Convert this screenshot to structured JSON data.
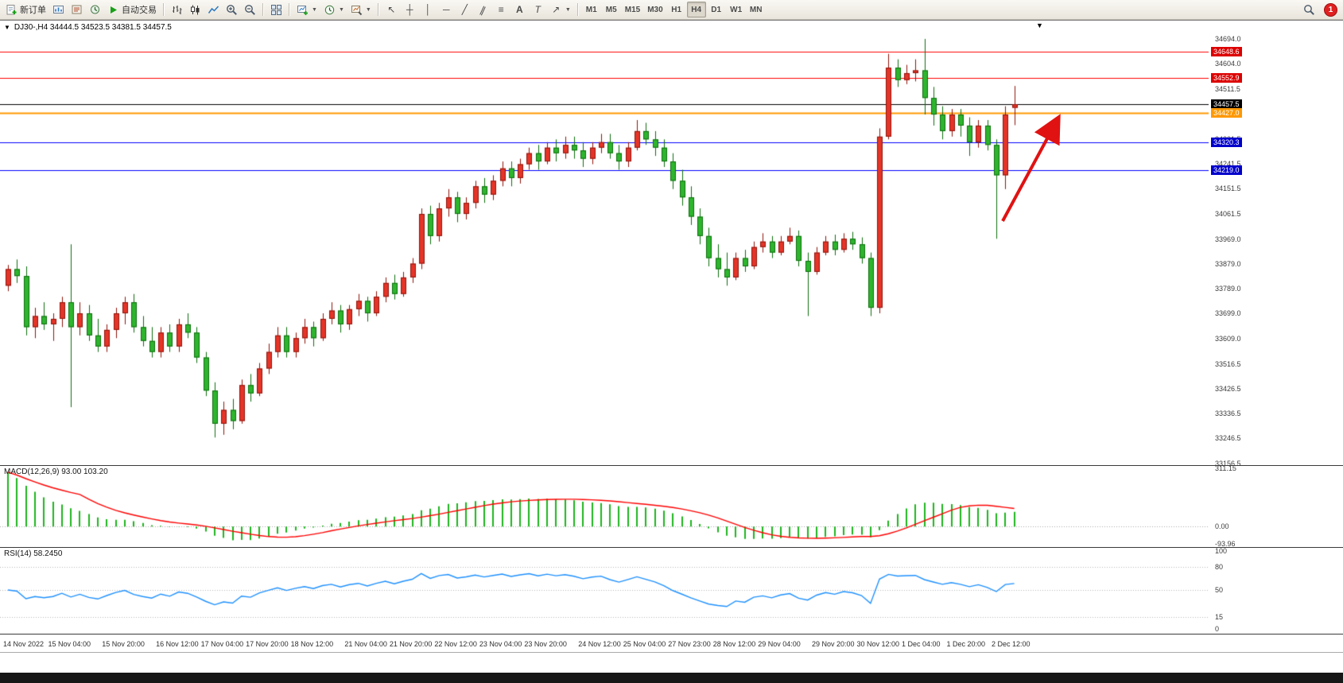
{
  "toolbar": {
    "new_order_label": "新订单",
    "autotrading_label": "自动交易",
    "text_tool_label": "A",
    "label_tool_label": "T",
    "timeframes": [
      "M1",
      "M5",
      "M15",
      "M30",
      "H1",
      "H4",
      "D1",
      "W1",
      "MN"
    ],
    "active_timeframe": "H4",
    "notification_count": "1"
  },
  "chart": {
    "title": "DJ30-,H4 34444.5 34523.5 34381.5 34457.5",
    "symbol": "DJ30-",
    "period": "H4",
    "ohlc": {
      "open": "34444.5",
      "high": "34523.5",
      "low": "34381.5",
      "close": "34457.5"
    }
  },
  "price_axis": {
    "labels": [
      {
        "value": 34694.0,
        "text": "34694.0"
      },
      {
        "value": 34604.0,
        "text": "34604.0"
      },
      {
        "value": 34511.5,
        "text": "34511.5"
      },
      {
        "value": 34421.5,
        "text": "34421.5"
      },
      {
        "value": 34331.5,
        "text": "34331.5"
      },
      {
        "value": 34241.5,
        "text": "34241.5"
      },
      {
        "value": 34151.5,
        "text": "34151.5"
      },
      {
        "value": 34061.5,
        "text": "34061.5"
      },
      {
        "value": 33969.0,
        "text": "33969.0"
      },
      {
        "value": 33879.0,
        "text": "33879.0"
      },
      {
        "value": 33789.0,
        "text": "33789.0"
      },
      {
        "value": 33699.0,
        "text": "33699.0"
      },
      {
        "value": 33609.0,
        "text": "33609.0"
      },
      {
        "value": 33516.5,
        "text": "33516.5"
      },
      {
        "value": 33426.5,
        "text": "33426.5"
      },
      {
        "value": 33336.5,
        "text": "33336.5"
      },
      {
        "value": 33246.5,
        "text": "33246.5"
      },
      {
        "value": 33156.5,
        "text": "33156.5"
      }
    ],
    "tags": [
      {
        "price": 34648.6,
        "text": "34648.6",
        "color": "#dd0000"
      },
      {
        "price": 34552.9,
        "text": "34552.9",
        "color": "#dd0000"
      },
      {
        "price": 34457.5,
        "text": "34457.5",
        "color": "#000000"
      },
      {
        "price": 34427.0,
        "text": "34427.0",
        "color": "#ff9800"
      },
      {
        "price": 34320.3,
        "text": "34320.3",
        "color": "#0000cc"
      },
      {
        "price": 34219.0,
        "text": "34219.0",
        "color": "#0000cc"
      }
    ]
  },
  "hlines": [
    {
      "price": 34648.6,
      "color": "#ff0000",
      "width": 1
    },
    {
      "price": 34552.9,
      "color": "#ff0000",
      "width": 1
    },
    {
      "price": 34457.5,
      "color": "#000000",
      "width": 1
    },
    {
      "price": 34427.0,
      "color": "#ff9800",
      "width": 2
    },
    {
      "price": 34320.3,
      "color": "#0000ff",
      "width": 1
    },
    {
      "price": 34219.0,
      "color": "#0000ff",
      "width": 1
    }
  ],
  "chart_data": {
    "type": "candlestick",
    "symbol": "DJ30-",
    "timeframe": "H4",
    "note": "red = bullish, green = bearish (CN color convention)",
    "bull_color": "#e53528",
    "bull_border": "#8f130a",
    "bear_color": "#2eb52e",
    "bear_border": "#0d6e0d",
    "y_axis": {
      "min": 33150,
      "max": 34760
    },
    "candles": [
      [
        33800,
        33875,
        33780,
        33860
      ],
      [
        33860,
        33895,
        33810,
        33835
      ],
      [
        33835,
        33870,
        33620,
        33650
      ],
      [
        33650,
        33720,
        33610,
        33690
      ],
      [
        33690,
        33740,
        33640,
        33660
      ],
      [
        33660,
        33700,
        33600,
        33680
      ],
      [
        33680,
        33760,
        33650,
        33740
      ],
      [
        33740,
        33950,
        33360,
        33650
      ],
      [
        33650,
        33740,
        33620,
        33700
      ],
      [
        33700,
        33730,
        33600,
        33620
      ],
      [
        33620,
        33680,
        33560,
        33580
      ],
      [
        33580,
        33660,
        33560,
        33640
      ],
      [
        33640,
        33720,
        33610,
        33700
      ],
      [
        33700,
        33760,
        33660,
        33740
      ],
      [
        33740,
        33770,
        33630,
        33650
      ],
      [
        33650,
        33690,
        33580,
        33600
      ],
      [
        33600,
        33650,
        33540,
        33560
      ],
      [
        33560,
        33650,
        33540,
        33630
      ],
      [
        33630,
        33660,
        33560,
        33580
      ],
      [
        33580,
        33680,
        33560,
        33660
      ],
      [
        33660,
        33700,
        33610,
        33630
      ],
      [
        33630,
        33650,
        33520,
        33540
      ],
      [
        33540,
        33560,
        33400,
        33420
      ],
      [
        33420,
        33450,
        33250,
        33300
      ],
      [
        33300,
        33380,
        33260,
        33350
      ],
      [
        33350,
        33390,
        33280,
        33310
      ],
      [
        33310,
        33460,
        33300,
        33440
      ],
      [
        33440,
        33480,
        33380,
        33410
      ],
      [
        33410,
        33520,
        33400,
        33500
      ],
      [
        33500,
        33590,
        33480,
        33560
      ],
      [
        33560,
        33650,
        33540,
        33620
      ],
      [
        33620,
        33650,
        33540,
        33560
      ],
      [
        33560,
        33630,
        33540,
        33610
      ],
      [
        33610,
        33680,
        33590,
        33650
      ],
      [
        33650,
        33670,
        33580,
        33610
      ],
      [
        33610,
        33700,
        33600,
        33680
      ],
      [
        33680,
        33740,
        33660,
        33710
      ],
      [
        33710,
        33730,
        33630,
        33660
      ],
      [
        33660,
        33730,
        33640,
        33715
      ],
      [
        33715,
        33770,
        33690,
        33745
      ],
      [
        33745,
        33760,
        33670,
        33700
      ],
      [
        33700,
        33780,
        33690,
        33760
      ],
      [
        33760,
        33830,
        33740,
        33810
      ],
      [
        33810,
        33840,
        33750,
        33770
      ],
      [
        33770,
        33850,
        33760,
        33830
      ],
      [
        33830,
        33900,
        33810,
        33880
      ],
      [
        33880,
        34080,
        33860,
        34060
      ],
      [
        34060,
        34090,
        33950,
        33980
      ],
      [
        33980,
        34100,
        33960,
        34080
      ],
      [
        34080,
        34150,
        34050,
        34120
      ],
      [
        34120,
        34140,
        34030,
        34060
      ],
      [
        34060,
        34120,
        34040,
        34100
      ],
      [
        34100,
        34180,
        34080,
        34160
      ],
      [
        34160,
        34190,
        34100,
        34130
      ],
      [
        34130,
        34200,
        34110,
        34180
      ],
      [
        34180,
        34250,
        34160,
        34225
      ],
      [
        34225,
        34250,
        34160,
        34190
      ],
      [
        34190,
        34260,
        34170,
        34240
      ],
      [
        34240,
        34300,
        34220,
        34280
      ],
      [
        34280,
        34310,
        34220,
        34250
      ],
      [
        34250,
        34320,
        34240,
        34300
      ],
      [
        34300,
        34330,
        34250,
        34280
      ],
      [
        34280,
        34340,
        34260,
        34310
      ],
      [
        34310,
        34340,
        34260,
        34290
      ],
      [
        34290,
        34320,
        34230,
        34260
      ],
      [
        34260,
        34320,
        34240,
        34300
      ],
      [
        34300,
        34350,
        34280,
        34320
      ],
      [
        34320,
        34350,
        34260,
        34280
      ],
      [
        34280,
        34310,
        34220,
        34250
      ],
      [
        34250,
        34320,
        34230,
        34300
      ],
      [
        34300,
        34400,
        34290,
        34360
      ],
      [
        34360,
        34390,
        34310,
        34330
      ],
      [
        34330,
        34360,
        34270,
        34300
      ],
      [
        34300,
        34330,
        34230,
        34250
      ],
      [
        34250,
        34280,
        34150,
        34180
      ],
      [
        34180,
        34220,
        34090,
        34120
      ],
      [
        34120,
        34160,
        34020,
        34050
      ],
      [
        34050,
        34080,
        33950,
        33980
      ],
      [
        33980,
        34010,
        33870,
        33900
      ],
      [
        33900,
        33950,
        33830,
        33860
      ],
      [
        33860,
        33920,
        33800,
        33830
      ],
      [
        33830,
        33920,
        33820,
        33900
      ],
      [
        33900,
        33930,
        33850,
        33870
      ],
      [
        33870,
        33960,
        33860,
        33940
      ],
      [
        33940,
        33990,
        33920,
        33960
      ],
      [
        33960,
        33980,
        33900,
        33920
      ],
      [
        33920,
        33980,
        33910,
        33960
      ],
      [
        33960,
        34010,
        33950,
        33980
      ],
      [
        33980,
        34000,
        33870,
        33890
      ],
      [
        33890,
        33920,
        33690,
        33850
      ],
      [
        33850,
        33940,
        33840,
        33920
      ],
      [
        33920,
        33980,
        33910,
        33960
      ],
      [
        33960,
        33985,
        33910,
        33930
      ],
      [
        33930,
        33990,
        33920,
        33970
      ],
      [
        33970,
        33995,
        33930,
        33950
      ],
      [
        33950,
        33975,
        33880,
        33900
      ],
      [
        33900,
        33920,
        33690,
        33720
      ],
      [
        33720,
        34370,
        33700,
        34340
      ],
      [
        34340,
        34640,
        34330,
        34590
      ],
      [
        34590,
        34620,
        34520,
        34545
      ],
      [
        34545,
        34600,
        34530,
        34570
      ],
      [
        34570,
        34620,
        34540,
        34580
      ],
      [
        34580,
        34694,
        34420,
        34480
      ],
      [
        34480,
        34520,
        34380,
        34420
      ],
      [
        34420,
        34450,
        34330,
        34360
      ],
      [
        34360,
        34440,
        34340,
        34420
      ],
      [
        34420,
        34440,
        34340,
        34380
      ],
      [
        34380,
        34410,
        34270,
        34320
      ],
      [
        34320,
        34400,
        34300,
        34380
      ],
      [
        34380,
        34400,
        34290,
        34310
      ],
      [
        34310,
        34330,
        33970,
        34200
      ],
      [
        34200,
        34450,
        34150,
        34420
      ],
      [
        34444.5,
        34523.5,
        34381.5,
        34457.5
      ]
    ],
    "time_labels": [
      {
        "text": "14 Nov 2022",
        "bar": 0
      },
      {
        "text": "15 Nov 04:00",
        "bar": 5
      },
      {
        "text": "15 Nov 20:00",
        "bar": 11
      },
      {
        "text": "16 Nov 12:00",
        "bar": 17
      },
      {
        "text": "17 Nov 04:00",
        "bar": 22
      },
      {
        "text": "17 Nov 20:00",
        "bar": 27
      },
      {
        "text": "18 Nov 12:00",
        "bar": 32
      },
      {
        "text": "21 Nov 04:00",
        "bar": 38
      },
      {
        "text": "21 Nov 20:00",
        "bar": 43
      },
      {
        "text": "22 Nov 12:00",
        "bar": 48
      },
      {
        "text": "23 Nov 04:00",
        "bar": 53
      },
      {
        "text": "23 Nov 20:00",
        "bar": 58
      },
      {
        "text": "24 Nov 12:00",
        "bar": 64
      },
      {
        "text": "25 Nov 04:00",
        "bar": 69
      },
      {
        "text": "27 Nov 23:00",
        "bar": 74
      },
      {
        "text": "28 Nov 12:00",
        "bar": 79
      },
      {
        "text": "29 Nov 04:00",
        "bar": 84
      },
      {
        "text": "29 Nov 20:00",
        "bar": 90
      },
      {
        "text": "30 Nov 12:00",
        "bar": 95
      },
      {
        "text": "1 Dec 04:00",
        "bar": 100
      },
      {
        "text": "1 Dec 20:00",
        "bar": 105
      },
      {
        "text": "2 Dec 12:00",
        "bar": 110
      }
    ]
  },
  "macd": {
    "label": "MACD(12,26,9) 93.00 103.20",
    "params": {
      "fast": 12,
      "slow": 26,
      "signal": 9
    },
    "value_main": "93.00",
    "value_signal": "103.20",
    "histogram_color": "#1db51d",
    "signal_color": "#ff0000",
    "axis_labels": [
      {
        "value": 311.15,
        "text": "311.15"
      },
      {
        "value": 0,
        "text": "0.00"
      },
      {
        "value": -93.96,
        "text": "-93.96"
      }
    ]
  },
  "rsi": {
    "label": "RSI(14) 58.2450",
    "period": 14,
    "value": "58.2450",
    "line_color": "#1e90ff",
    "levels": [
      80,
      50,
      15
    ],
    "axis_labels": [
      {
        "value": 100,
        "text": "100"
      },
      {
        "value": 80,
        "text": "80"
      },
      {
        "value": 50,
        "text": "50"
      },
      {
        "value": 15,
        "text": "15"
      },
      {
        "value": 0,
        "text": "0"
      }
    ]
  },
  "annotation_arrow": {
    "color": "#e01212"
  }
}
